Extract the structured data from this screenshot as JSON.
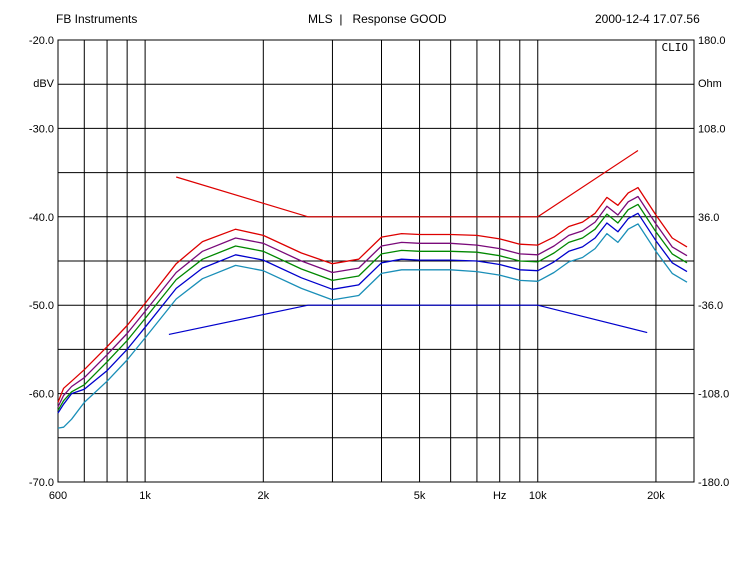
{
  "header": {
    "left": "FB Instruments",
    "center": "MLS  |   Response GOOD",
    "right": "2000-12-4 17.07.56"
  },
  "chart_data": {
    "type": "line",
    "brand_label": "CLIO",
    "x_scale": "log",
    "xlim": [
      600,
      25000
    ],
    "x_ticks": [
      600,
      1000,
      2000,
      5000,
      10000,
      20000
    ],
    "x_tick_labels": [
      "600",
      "1k",
      "2k",
      "5k",
      "10k",
      "20k"
    ],
    "x_unit_label": "Hz",
    "x_unit_at": 8000,
    "x_gridlines": [
      600,
      700,
      800,
      900,
      1000,
      2000,
      3000,
      4000,
      5000,
      6000,
      7000,
      8000,
      9000,
      10000,
      20000
    ],
    "ylim": [
      -70,
      -20
    ],
    "y_ticks": [
      -20,
      -30,
      -40,
      -50,
      -60,
      -70
    ],
    "y_tick_labels": [
      "-20.0",
      "-30.0",
      "-40.0",
      "-50.0",
      "-60.0",
      "-70.0"
    ],
    "y_unit_label": "dBV",
    "y_gridlines": [
      -20,
      -25,
      -30,
      -35,
      -40,
      -45,
      -50,
      -55,
      -60,
      -65,
      -70
    ],
    "y2lim": [
      -180,
      180
    ],
    "y2_ticks": [
      180,
      108,
      36,
      -36,
      -108,
      -180
    ],
    "y2_tick_labels": [
      "180.0",
      "108.0",
      "36.0",
      "-36.0",
      "-108.0",
      "-180.0"
    ],
    "y2_unit_label": "Ohm",
    "grid": true,
    "limits": [
      {
        "color": "#dd0000",
        "points": [
          [
            1200,
            -35.5
          ],
          [
            2600,
            -40.0
          ],
          [
            10000,
            -40.0
          ],
          [
            18000,
            -32.5
          ]
        ]
      },
      {
        "color": "#0000cc",
        "points": [
          [
            1150,
            -53.3
          ],
          [
            2600,
            -50.0
          ],
          [
            10000,
            -50.0
          ],
          [
            19000,
            -53.1
          ]
        ]
      }
    ],
    "series": [
      {
        "color": "#dd0000",
        "values": [
          [
            600,
            -61.0
          ],
          [
            620,
            -59.4
          ],
          [
            650,
            -58.6
          ],
          [
            700,
            -57.3
          ],
          [
            800,
            -54.7
          ],
          [
            900,
            -52.3
          ],
          [
            1000,
            -49.8
          ],
          [
            1200,
            -45.3
          ],
          [
            1400,
            -42.8
          ],
          [
            1700,
            -41.4
          ],
          [
            2000,
            -42.1
          ],
          [
            2500,
            -44.1
          ],
          [
            3000,
            -45.3
          ],
          [
            3500,
            -44.8
          ],
          [
            4000,
            -42.3
          ],
          [
            4500,
            -41.9
          ],
          [
            5000,
            -42.0
          ],
          [
            6000,
            -42.0
          ],
          [
            7000,
            -42.1
          ],
          [
            8000,
            -42.5
          ],
          [
            9000,
            -43.1
          ],
          [
            10000,
            -43.2
          ],
          [
            11000,
            -42.3
          ],
          [
            12000,
            -41.1
          ],
          [
            13000,
            -40.6
          ],
          [
            14000,
            -39.6
          ],
          [
            15000,
            -37.8
          ],
          [
            16000,
            -38.7
          ],
          [
            17000,
            -37.3
          ],
          [
            18000,
            -36.7
          ],
          [
            20000,
            -39.8
          ],
          [
            22000,
            -42.4
          ],
          [
            24000,
            -43.4
          ]
        ]
      },
      {
        "color": "#7a0a7a",
        "values": [
          [
            600,
            -61.5
          ],
          [
            620,
            -60.2
          ],
          [
            650,
            -59.2
          ],
          [
            700,
            -58.2
          ],
          [
            800,
            -55.6
          ],
          [
            900,
            -53.2
          ],
          [
            1000,
            -50.7
          ],
          [
            1200,
            -46.3
          ],
          [
            1400,
            -43.9
          ],
          [
            1700,
            -42.4
          ],
          [
            2000,
            -43.0
          ],
          [
            2500,
            -45.0
          ],
          [
            3000,
            -46.3
          ],
          [
            3500,
            -45.8
          ],
          [
            4000,
            -43.3
          ],
          [
            4500,
            -42.9
          ],
          [
            5000,
            -43.0
          ],
          [
            6000,
            -43.0
          ],
          [
            7000,
            -43.2
          ],
          [
            8000,
            -43.6
          ],
          [
            9000,
            -44.2
          ],
          [
            10000,
            -44.3
          ],
          [
            11000,
            -43.3
          ],
          [
            12000,
            -42.1
          ],
          [
            13000,
            -41.6
          ],
          [
            14000,
            -40.6
          ],
          [
            15000,
            -38.8
          ],
          [
            16000,
            -39.8
          ],
          [
            17000,
            -38.3
          ],
          [
            18000,
            -37.7
          ],
          [
            20000,
            -40.8
          ],
          [
            22000,
            -43.4
          ],
          [
            24000,
            -44.4
          ]
        ]
      },
      {
        "color": "#008800",
        "values": [
          [
            600,
            -61.9
          ],
          [
            620,
            -60.8
          ],
          [
            650,
            -59.8
          ],
          [
            700,
            -59.0
          ],
          [
            800,
            -56.4
          ],
          [
            900,
            -54.0
          ],
          [
            1000,
            -51.5
          ],
          [
            1200,
            -47.1
          ],
          [
            1400,
            -44.8
          ],
          [
            1700,
            -43.3
          ],
          [
            2000,
            -43.9
          ],
          [
            2500,
            -45.9
          ],
          [
            3000,
            -47.2
          ],
          [
            3500,
            -46.7
          ],
          [
            4000,
            -44.2
          ],
          [
            4500,
            -43.8
          ],
          [
            5000,
            -43.9
          ],
          [
            6000,
            -43.9
          ],
          [
            7000,
            -44.0
          ],
          [
            8000,
            -44.4
          ],
          [
            9000,
            -45.0
          ],
          [
            10000,
            -45.1
          ],
          [
            11000,
            -44.1
          ],
          [
            12000,
            -42.9
          ],
          [
            13000,
            -42.4
          ],
          [
            14000,
            -41.4
          ],
          [
            15000,
            -39.7
          ],
          [
            16000,
            -40.7
          ],
          [
            17000,
            -39.2
          ],
          [
            18000,
            -38.6
          ],
          [
            20000,
            -41.7
          ],
          [
            22000,
            -44.2
          ],
          [
            24000,
            -45.2
          ]
        ]
      },
      {
        "color": "#0000cc",
        "values": [
          [
            600,
            -62.2
          ],
          [
            620,
            -61.2
          ],
          [
            650,
            -60.0
          ],
          [
            700,
            -59.5
          ],
          [
            800,
            -57.4
          ],
          [
            900,
            -55.0
          ],
          [
            1000,
            -52.5
          ],
          [
            1200,
            -48.1
          ],
          [
            1400,
            -45.8
          ],
          [
            1700,
            -44.3
          ],
          [
            2000,
            -44.9
          ],
          [
            2500,
            -46.9
          ],
          [
            3000,
            -48.2
          ],
          [
            3500,
            -47.7
          ],
          [
            4000,
            -45.2
          ],
          [
            4500,
            -44.8
          ],
          [
            5000,
            -44.9
          ],
          [
            6000,
            -44.9
          ],
          [
            7000,
            -45.0
          ],
          [
            8000,
            -45.4
          ],
          [
            9000,
            -46.0
          ],
          [
            10000,
            -46.1
          ],
          [
            11000,
            -45.1
          ],
          [
            12000,
            -43.9
          ],
          [
            13000,
            -43.4
          ],
          [
            14000,
            -42.4
          ],
          [
            15000,
            -40.7
          ],
          [
            16000,
            -41.7
          ],
          [
            17000,
            -40.2
          ],
          [
            18000,
            -39.6
          ],
          [
            20000,
            -42.7
          ],
          [
            22000,
            -45.2
          ],
          [
            24000,
            -46.2
          ]
        ]
      },
      {
        "color": "#1a8fb8",
        "values": [
          [
            600,
            -63.9
          ],
          [
            620,
            -63.8
          ],
          [
            650,
            -62.9
          ],
          [
            700,
            -61.0
          ],
          [
            800,
            -58.6
          ],
          [
            900,
            -56.2
          ],
          [
            1000,
            -53.7
          ],
          [
            1200,
            -49.3
          ],
          [
            1400,
            -47.0
          ],
          [
            1700,
            -45.5
          ],
          [
            2000,
            -46.1
          ],
          [
            2500,
            -48.1
          ],
          [
            3000,
            -49.4
          ],
          [
            3500,
            -48.9
          ],
          [
            4000,
            -46.4
          ],
          [
            4500,
            -46.0
          ],
          [
            5000,
            -46.0
          ],
          [
            6000,
            -46.0
          ],
          [
            7000,
            -46.2
          ],
          [
            8000,
            -46.6
          ],
          [
            9000,
            -47.2
          ],
          [
            10000,
            -47.3
          ],
          [
            11000,
            -46.3
          ],
          [
            12000,
            -45.1
          ],
          [
            13000,
            -44.6
          ],
          [
            14000,
            -43.6
          ],
          [
            15000,
            -41.9
          ],
          [
            16000,
            -42.9
          ],
          [
            17000,
            -41.4
          ],
          [
            18000,
            -40.8
          ],
          [
            20000,
            -43.9
          ],
          [
            22000,
            -46.4
          ],
          [
            24000,
            -47.4
          ]
        ]
      }
    ]
  }
}
